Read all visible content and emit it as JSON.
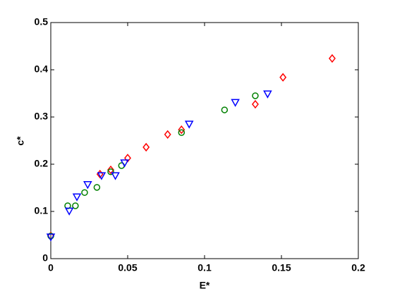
{
  "chart_data": {
    "type": "scatter",
    "xlabel": "E*",
    "ylabel": "c*",
    "xlim": [
      0,
      0.2
    ],
    "xticks": [
      0,
      0.05,
      0.1,
      0.15,
      0.2
    ],
    "ylim": [
      0,
      0.5
    ],
    "yticks": [
      0,
      0.1,
      0.2,
      0.3,
      0.4,
      0.5
    ],
    "grid": false,
    "series": [
      {
        "color": "#ff0000",
        "marker": "diamond",
        "x": [
          0,
          0.032,
          0.039,
          0.05,
          0.062,
          0.076,
          0.085,
          0.133,
          0.151,
          0.183
        ],
        "values": [
          0.048,
          0.179,
          0.188,
          0.213,
          0.236,
          0.263,
          0.273,
          0.327,
          0.384,
          0.424
        ]
      },
      {
        "color": "#008000",
        "marker": "circle",
        "x": [
          0,
          0.011,
          0.016,
          0.022,
          0.03,
          0.039,
          0.046,
          0.085,
          0.113,
          0.133
        ],
        "values": [
          0.048,
          0.112,
          0.112,
          0.14,
          0.151,
          0.184,
          0.197,
          0.267,
          0.315,
          0.345
        ]
      },
      {
        "color": "#0000ff",
        "marker": "triangle-down",
        "x": [
          0,
          0.012,
          0.017,
          0.024,
          0.033,
          0.042,
          0.048,
          0.09,
          0.12,
          0.141
        ],
        "values": [
          0.046,
          0.101,
          0.131,
          0.157,
          0.176,
          0.176,
          0.203,
          0.285,
          0.331,
          0.349
        ]
      }
    ]
  }
}
